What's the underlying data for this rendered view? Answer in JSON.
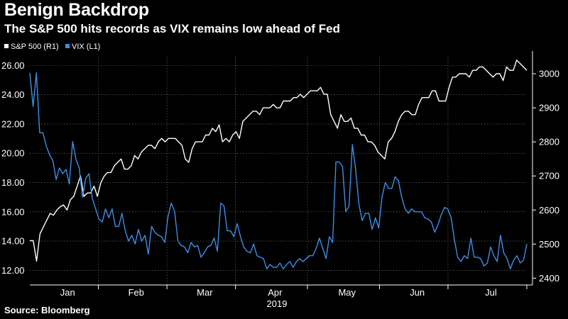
{
  "title": "Benign Backdrop",
  "subtitle": "The S&P 500 hits records as VIX remains low ahead of Fed",
  "source": "Source: Bloomberg",
  "colors": {
    "background": "#000000",
    "spx": "#ffffff",
    "vix": "#3d8ee6",
    "grid": "#7a7a7a"
  },
  "chart_data": {
    "type": "line",
    "title": "Benign Backdrop",
    "subtitle": "The S&P 500 hits records as VIX remains low ahead of Fed",
    "xlabel": "2019",
    "month_labels": [
      "Jan",
      "Feb",
      "Mar",
      "Apr",
      "May",
      "Jun",
      "Jul"
    ],
    "left_axis": {
      "series": "VIX (L1)",
      "ylim": [
        11.0,
        26.6
      ],
      "ticks": [
        "12.00",
        "14.00",
        "16.00",
        "18.00",
        "20.00",
        "22.00",
        "24.00",
        "26.00"
      ]
    },
    "right_axis": {
      "series": "S&P 500 (R1)",
      "ylim": [
        2380,
        3050
      ],
      "ticks": [
        "2400",
        "2500",
        "2600",
        "2700",
        "2800",
        "2900",
        "3000"
      ]
    },
    "legend": [
      "S&P 500 (R1)",
      "VIX (L1)"
    ],
    "legend_position": "top-left",
    "x_range": [
      0,
      145
    ],
    "series": [
      {
        "name": "S&P 500 (R1)",
        "axis": "right",
        "values": [
          2510,
          2510,
          2450,
          2530,
          2550,
          2570,
          2590,
          2585,
          2600,
          2610,
          2615,
          2600,
          2630,
          2640,
          2670,
          2700,
          2640,
          2650,
          2650,
          2670,
          2640,
          2680,
          2700,
          2710,
          2710,
          2730,
          2740,
          2750,
          2720,
          2720,
          2730,
          2760,
          2750,
          2770,
          2780,
          2790,
          2790,
          2780,
          2800,
          2810,
          2800,
          2810,
          2810,
          2810,
          2800,
          2790,
          2750,
          2740,
          2780,
          2800,
          2800,
          2800,
          2820,
          2820,
          2840,
          2830,
          2850,
          2800,
          2810,
          2800,
          2820,
          2830,
          2810,
          2860,
          2870,
          2880,
          2890,
          2890,
          2880,
          2900,
          2900,
          2900,
          2910,
          2900,
          2900,
          2920,
          2920,
          2920,
          2930,
          2930,
          2940,
          2930,
          2940,
          2950,
          2950,
          2950,
          2960,
          2940,
          2940,
          2880,
          2860,
          2840,
          2880,
          2860,
          2860,
          2870,
          2840,
          2840,
          2820,
          2820,
          2800,
          2800,
          2790,
          2770,
          2760,
          2750,
          2800,
          2810,
          2830,
          2860,
          2880,
          2890,
          2890,
          2880,
          2880,
          2910,
          2930,
          2930,
          2930,
          2950,
          2950,
          2920,
          2920,
          2920,
          2960,
          2990,
          2990,
          3000,
          3000,
          3000,
          2990,
          3010,
          3010,
          3020,
          3020,
          3010,
          3000,
          2990,
          3000,
          3000,
          2980,
          3020,
          3010,
          3010,
          3040,
          3030,
          3020,
          3010
        ]
      },
      {
        "name": "VIX (L1)",
        "axis": "left",
        "values": [
          25.5,
          23.2,
          25.5,
          21.4,
          21.4,
          20.5,
          19.9,
          19.5,
          18.2,
          19.0,
          18.6,
          18.9,
          17.9,
          20.8,
          19.6,
          19.0,
          17.0,
          18.3,
          18.6,
          16.9,
          16.2,
          15.5,
          15.3,
          16.2,
          15.6,
          16.2,
          15.0,
          15.0,
          15.9,
          14.7,
          14.0,
          14.4,
          13.8,
          14.8,
          14.0,
          14.4,
          13.1,
          15.0,
          14.6,
          14.4,
          14.3,
          13.9,
          15.7,
          16.6,
          16.0,
          14.0,
          13.7,
          13.6,
          13.2,
          13.9,
          13.6,
          13.7,
          12.9,
          13.2,
          13.6,
          13.7,
          14.2,
          13.3,
          16.6,
          16.4,
          14.7,
          14.7,
          14.3,
          15.2,
          14.3,
          13.6,
          13.3,
          13.2,
          13.8,
          13.0,
          12.9,
          12.8,
          12.1,
          12.4,
          12.2,
          12.2,
          12.5,
          12.1,
          12.4,
          12.6,
          12.2,
          12.6,
          12.8,
          12.6,
          12.8,
          13.0,
          13.0,
          13.5,
          14.2,
          13.5,
          12.8,
          14.3,
          13.9,
          19.4,
          19.4,
          19.1,
          16.0,
          16.4,
          20.6,
          18.9,
          16.5,
          15.4,
          15.9,
          15.9,
          14.8,
          15.6,
          14.9,
          17.0,
          18.0,
          17.6,
          17.6,
          18.4,
          18.1,
          17.0,
          16.2,
          15.9,
          16.2,
          16.0,
          16.0,
          16.0,
          15.6,
          15.5,
          15.3,
          14.6,
          15.1,
          15.8,
          16.3,
          16.2,
          15.6,
          14.1,
          12.9,
          12.6,
          13.0,
          12.8,
          14.2,
          12.9,
          12.9,
          12.8,
          12.3,
          12.5,
          13.6,
          13.0,
          12.6,
          14.4,
          13.2,
          12.8,
          12.1,
          12.7,
          13.0,
          12.5,
          12.7,
          13.8
        ]
      }
    ]
  }
}
